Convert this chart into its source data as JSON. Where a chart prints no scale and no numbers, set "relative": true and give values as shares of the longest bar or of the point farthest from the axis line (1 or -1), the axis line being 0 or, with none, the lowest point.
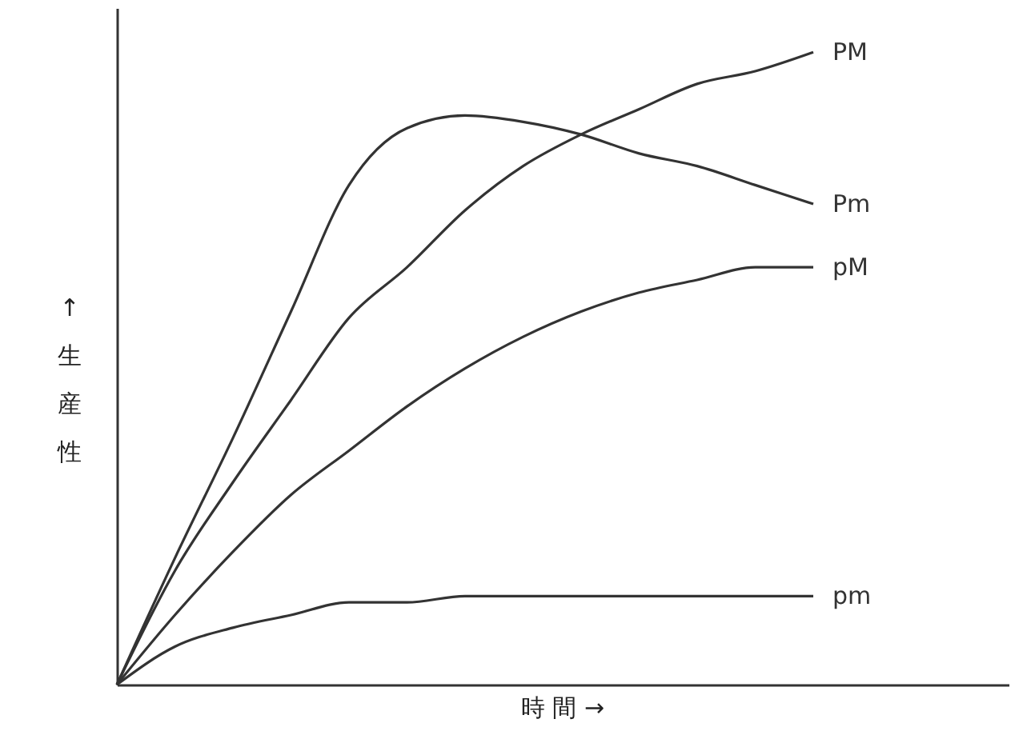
{
  "chart_data": {
    "type": "line",
    "relative": true,
    "xlabel": "時 間 →",
    "ylabel": "↑生産性",
    "grid": false,
    "categories": [
      null,
      null,
      null,
      null,
      null,
      null,
      null,
      null,
      null,
      null,
      null,
      null,
      null
    ],
    "series": [
      {
        "name": "PM",
        "color": "#333333",
        "values": [
          0,
          0.18,
          0.32,
          0.45,
          0.58,
          0.66,
          0.75,
          0.82,
          0.87,
          0.91,
          0.95,
          0.97,
          1
        ]
      },
      {
        "name": "Pm",
        "color": "#333333",
        "values": [
          0,
          0.2,
          0.39,
          0.59,
          0.79,
          0.88,
          0.9,
          0.89,
          0.87,
          0.84,
          0.82,
          0.79,
          0.76
        ]
      },
      {
        "name": "pM",
        "color": "#333333",
        "values": [
          0,
          0.11,
          0.21,
          0.3,
          0.37,
          0.44,
          0.5,
          0.55,
          0.59,
          0.62,
          0.64,
          0.66,
          0.66
        ]
      },
      {
        "name": "pm",
        "color": "#333333",
        "values": [
          0,
          0.06,
          0.09,
          0.11,
          0.13,
          0.13,
          0.14,
          0.14,
          0.14,
          0.14,
          0.14,
          0.14,
          0.14
        ]
      }
    ]
  }
}
